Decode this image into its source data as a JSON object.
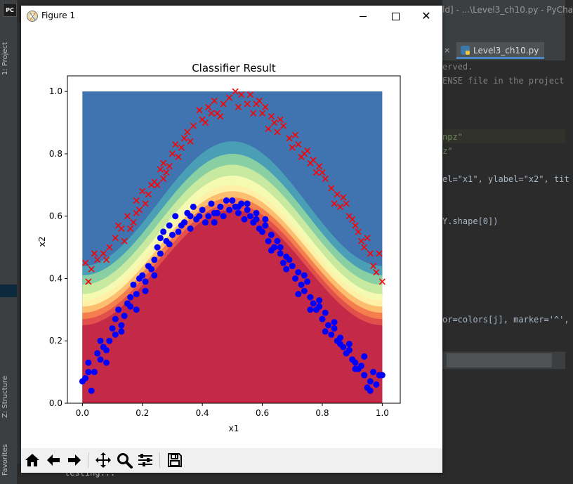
{
  "ide": {
    "title": "ld] - ...\\Level3_ch10.py - PyCha",
    "tab_label": "Level3_ch10.py",
    "side_tabs": [
      "1: Project",
      "Z: Structure",
      "Favorites"
    ],
    "code_lines": [
      {
        "text": "erved.",
        "color": "#808080"
      },
      {
        "text": "ENSE file in the project",
        "color": "#808080"
      },
      {
        "text": "npz\"",
        "color": "#6a8759"
      },
      {
        "text": "z\"",
        "color": "#6a8759"
      },
      {
        "text": "el=\"x1\", ylabel=\"x2\", tit",
        "color": "#a9b7c6"
      },
      {
        "text": "Y.shape[0])",
        "color": "#a9b7c6"
      },
      {
        "text": "or=colors[j], marker='^',",
        "color": "#a9b7c6"
      }
    ],
    "console_text": "testing..."
  },
  "figure": {
    "window_title": "Figure 1"
  },
  "toolbar": {
    "home": "home-icon",
    "back": "back-arrow-icon",
    "forward": "forward-arrow-icon",
    "pan": "pan-icon",
    "zoom": "zoom-icon",
    "configure": "configure-subplots-icon",
    "save": "save-icon"
  },
  "chart_data": {
    "type": "scatter",
    "title": "Classifier Result",
    "xlabel": "x1",
    "ylabel": "x2",
    "xlim": [
      -0.05,
      1.06
    ],
    "ylim": [
      0.0,
      1.05
    ],
    "xticks": [
      "0.0",
      "0.2",
      "0.4",
      "0.6",
      "0.8",
      "1.0"
    ],
    "yticks": [
      "0.0",
      "0.2",
      "0.4",
      "0.6",
      "0.8",
      "1.0"
    ],
    "background": "filled contour of classifier probability over [0,1]x[0,1], colormap Spectral (red low region, blue high region)",
    "contour_colors": [
      "#c42a47",
      "#e1504a",
      "#f57e4e",
      "#fdbe6f",
      "#fef1a7",
      "#f4fab1",
      "#c7e9a0",
      "#89cfa4",
      "#4a9fb6",
      "#3f74b0"
    ],
    "series": [
      {
        "marker": "x",
        "color": "#ff0000",
        "points": [
          [
            0.01,
            0.45
          ],
          [
            0.02,
            0.39
          ],
          [
            0.03,
            0.43
          ],
          [
            0.04,
            0.48
          ],
          [
            0.05,
            0.46
          ],
          [
            0.07,
            0.48
          ],
          [
            0.09,
            0.5
          ],
          [
            0.11,
            0.53
          ],
          [
            0.13,
            0.56
          ],
          [
            0.14,
            0.52
          ],
          [
            0.16,
            0.56
          ],
          [
            0.17,
            0.58
          ],
          [
            0.18,
            0.61
          ],
          [
            0.19,
            0.62
          ],
          [
            0.21,
            0.64
          ],
          [
            0.22,
            0.67
          ],
          [
            0.23,
            0.7
          ],
          [
            0.24,
            0.71
          ],
          [
            0.25,
            0.7
          ],
          [
            0.27,
            0.72
          ],
          [
            0.28,
            0.74
          ],
          [
            0.29,
            0.76
          ],
          [
            0.3,
            0.8
          ],
          [
            0.31,
            0.83
          ],
          [
            0.33,
            0.82
          ],
          [
            0.34,
            0.85
          ],
          [
            0.35,
            0.87
          ],
          [
            0.37,
            0.89
          ],
          [
            0.39,
            0.94
          ],
          [
            0.41,
            0.9
          ],
          [
            0.42,
            0.95
          ],
          [
            0.44,
            0.97
          ],
          [
            0.45,
            0.93
          ],
          [
            0.47,
            0.96
          ],
          [
            0.49,
            0.98
          ],
          [
            0.51,
            1.0
          ],
          [
            0.53,
            0.99
          ],
          [
            0.55,
            0.96
          ],
          [
            0.56,
            0.99
          ],
          [
            0.58,
            0.96
          ],
          [
            0.6,
            0.93
          ],
          [
            0.61,
            0.95
          ],
          [
            0.63,
            0.92
          ],
          [
            0.64,
            0.9
          ],
          [
            0.66,
            0.91
          ],
          [
            0.67,
            0.89
          ],
          [
            0.69,
            0.85
          ],
          [
            0.71,
            0.86
          ],
          [
            0.72,
            0.83
          ],
          [
            0.74,
            0.8
          ],
          [
            0.75,
            0.81
          ],
          [
            0.77,
            0.78
          ],
          [
            0.78,
            0.74
          ],
          [
            0.8,
            0.74
          ],
          [
            0.81,
            0.72
          ],
          [
            0.83,
            0.69
          ],
          [
            0.85,
            0.67
          ],
          [
            0.86,
            0.63
          ],
          [
            0.88,
            0.64
          ],
          [
            0.89,
            0.6
          ],
          [
            0.91,
            0.57
          ],
          [
            0.92,
            0.55
          ],
          [
            0.93,
            0.52
          ],
          [
            0.95,
            0.53
          ],
          [
            0.96,
            0.48
          ],
          [
            0.97,
            0.44
          ],
          [
            0.98,
            0.42
          ],
          [
            0.99,
            0.48
          ],
          [
            1.0,
            0.39
          ],
          [
            0.4,
            0.91
          ],
          [
            0.36,
            0.84
          ],
          [
            0.26,
            0.75
          ],
          [
            0.2,
            0.68
          ],
          [
            0.12,
            0.57
          ],
          [
            0.08,
            0.46
          ],
          [
            0.57,
            0.93
          ],
          [
            0.62,
            0.88
          ],
          [
            0.7,
            0.82
          ],
          [
            0.79,
            0.76
          ],
          [
            0.87,
            0.66
          ],
          [
            0.94,
            0.5
          ],
          [
            0.52,
            0.95
          ],
          [
            0.46,
            0.92
          ],
          [
            0.32,
            0.79
          ],
          [
            0.15,
            0.6
          ],
          [
            0.65,
            0.87
          ],
          [
            0.76,
            0.77
          ],
          [
            0.84,
            0.64
          ],
          [
            0.9,
            0.59
          ],
          [
            0.43,
            0.93
          ],
          [
            0.59,
            0.97
          ],
          [
            0.73,
            0.79
          ],
          [
            0.27,
            0.77
          ],
          [
            0.18,
            0.65
          ]
        ]
      },
      {
        "marker": "o",
        "color": "#0000ff",
        "points": [
          [
            0.0,
            0.07
          ],
          [
            0.01,
            0.08
          ],
          [
            0.02,
            0.13
          ],
          [
            0.03,
            0.04
          ],
          [
            0.04,
            0.1
          ],
          [
            0.05,
            0.16
          ],
          [
            0.06,
            0.2
          ],
          [
            0.07,
            0.18
          ],
          [
            0.08,
            0.13
          ],
          [
            0.09,
            0.2
          ],
          [
            0.1,
            0.24
          ],
          [
            0.11,
            0.27
          ],
          [
            0.12,
            0.3
          ],
          [
            0.13,
            0.25
          ],
          [
            0.14,
            0.28
          ],
          [
            0.15,
            0.32
          ],
          [
            0.16,
            0.34
          ],
          [
            0.17,
            0.38
          ],
          [
            0.18,
            0.35
          ],
          [
            0.19,
            0.4
          ],
          [
            0.2,
            0.41
          ],
          [
            0.21,
            0.36
          ],
          [
            0.22,
            0.44
          ],
          [
            0.23,
            0.43
          ],
          [
            0.24,
            0.46
          ],
          [
            0.25,
            0.5
          ],
          [
            0.26,
            0.53
          ],
          [
            0.27,
            0.55
          ],
          [
            0.28,
            0.52
          ],
          [
            0.29,
            0.57
          ],
          [
            0.3,
            0.54
          ],
          [
            0.31,
            0.6
          ],
          [
            0.33,
            0.57
          ],
          [
            0.34,
            0.58
          ],
          [
            0.35,
            0.61
          ],
          [
            0.36,
            0.56
          ],
          [
            0.37,
            0.63
          ],
          [
            0.38,
            0.59
          ],
          [
            0.4,
            0.62
          ],
          [
            0.41,
            0.58
          ],
          [
            0.42,
            0.6
          ],
          [
            0.43,
            0.64
          ],
          [
            0.44,
            0.58
          ],
          [
            0.46,
            0.63
          ],
          [
            0.47,
            0.6
          ],
          [
            0.48,
            0.65
          ],
          [
            0.49,
            0.62
          ],
          [
            0.5,
            0.65
          ],
          [
            0.51,
            0.63
          ],
          [
            0.52,
            0.61
          ],
          [
            0.53,
            0.64
          ],
          [
            0.54,
            0.59
          ],
          [
            0.55,
            0.62
          ],
          [
            0.56,
            0.6
          ],
          [
            0.57,
            0.58
          ],
          [
            0.58,
            0.61
          ],
          [
            0.59,
            0.56
          ],
          [
            0.6,
            0.55
          ],
          [
            0.61,
            0.57
          ],
          [
            0.62,
            0.52
          ],
          [
            0.63,
            0.54
          ],
          [
            0.64,
            0.5
          ],
          [
            0.65,
            0.52
          ],
          [
            0.66,
            0.48
          ],
          [
            0.67,
            0.45
          ],
          [
            0.68,
            0.47
          ],
          [
            0.7,
            0.44
          ],
          [
            0.71,
            0.4
          ],
          [
            0.72,
            0.42
          ],
          [
            0.73,
            0.38
          ],
          [
            0.74,
            0.36
          ],
          [
            0.75,
            0.39
          ],
          [
            0.76,
            0.34
          ],
          [
            0.77,
            0.32
          ],
          [
            0.78,
            0.3
          ],
          [
            0.79,
            0.33
          ],
          [
            0.8,
            0.27
          ],
          [
            0.81,
            0.29
          ],
          [
            0.82,
            0.25
          ],
          [
            0.83,
            0.22
          ],
          [
            0.84,
            0.24
          ],
          [
            0.85,
            0.2
          ],
          [
            0.86,
            0.21
          ],
          [
            0.87,
            0.18
          ],
          [
            0.88,
            0.16
          ],
          [
            0.89,
            0.19
          ],
          [
            0.9,
            0.14
          ],
          [
            0.91,
            0.13
          ],
          [
            0.92,
            0.11
          ],
          [
            0.93,
            0.12
          ],
          [
            0.94,
            0.09
          ],
          [
            0.95,
            0.05
          ],
          [
            0.96,
            0.07
          ],
          [
            0.97,
            0.1
          ],
          [
            0.98,
            0.06
          ],
          [
            0.99,
            0.09
          ],
          [
            1.0,
            0.09
          ],
          [
            0.02,
            0.1
          ],
          [
            0.06,
            0.14
          ],
          [
            0.11,
            0.22
          ],
          [
            0.16,
            0.31
          ],
          [
            0.21,
            0.39
          ],
          [
            0.26,
            0.48
          ],
          [
            0.32,
            0.55
          ],
          [
            0.39,
            0.6
          ],
          [
            0.45,
            0.61
          ],
          [
            0.55,
            0.64
          ],
          [
            0.61,
            0.59
          ],
          [
            0.66,
            0.5
          ],
          [
            0.69,
            0.46
          ],
          [
            0.74,
            0.41
          ],
          [
            0.79,
            0.31
          ],
          [
            0.84,
            0.26
          ],
          [
            0.89,
            0.17
          ],
          [
            0.94,
            0.15
          ],
          [
            0.08,
            0.17
          ],
          [
            0.13,
            0.23
          ],
          [
            0.18,
            0.3
          ],
          [
            0.24,
            0.41
          ],
          [
            0.29,
            0.51
          ],
          [
            0.36,
            0.6
          ],
          [
            0.44,
            0.61
          ],
          [
            0.52,
            0.63
          ],
          [
            0.58,
            0.59
          ],
          [
            0.63,
            0.49
          ],
          [
            0.68,
            0.43
          ],
          [
            0.72,
            0.35
          ],
          [
            0.76,
            0.3
          ],
          [
            0.81,
            0.23
          ],
          [
            0.86,
            0.19
          ],
          [
            0.91,
            0.11
          ],
          [
            0.96,
            0.04
          ]
        ]
      }
    ]
  }
}
